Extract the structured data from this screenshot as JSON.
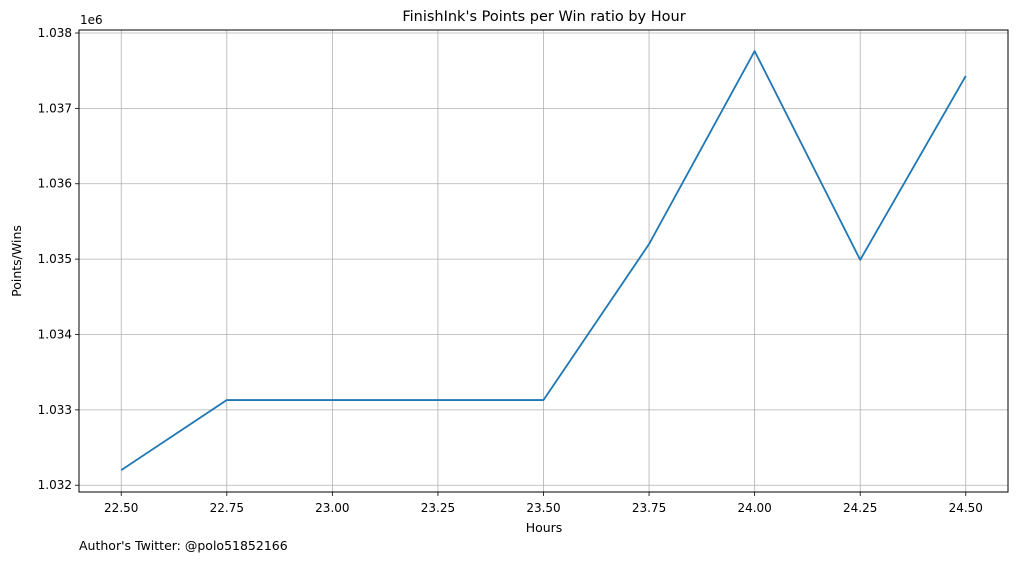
{
  "chart_data": {
    "type": "line",
    "title": "FinishInk's Points per Win ratio by Hour",
    "xlabel": "Hours",
    "ylabel": "Points/Wins",
    "y_offset_label": "1e6",
    "footer": "Author's Twitter: @polo51852166",
    "x": [
      22.5,
      22.75,
      23.0,
      23.25,
      23.5,
      23.75,
      24.0,
      24.25,
      24.5
    ],
    "series": [
      {
        "values": [
          1.0322,
          1.03313,
          1.03313,
          1.03313,
          1.03313,
          1.0352,
          1.03776,
          1.03499,
          1.03743
        ]
      }
    ],
    "xlim": [
      22.4,
      24.6
    ],
    "ylim": [
      1.03191,
      1.03804
    ],
    "xticks": [
      22.5,
      22.75,
      23.0,
      23.25,
      23.5,
      23.75,
      24.0,
      24.25,
      24.5
    ],
    "xtick_labels": [
      "22.50",
      "22.75",
      "23.00",
      "23.25",
      "23.50",
      "23.75",
      "24.00",
      "24.25",
      "24.50"
    ],
    "yticks": [
      1.032,
      1.033,
      1.034,
      1.035,
      1.036,
      1.037,
      1.038
    ],
    "ytick_labels": [
      "1.032",
      "1.033",
      "1.034",
      "1.035",
      "1.036",
      "1.037",
      "1.038"
    ],
    "grid": true,
    "line_color": "#1f77b4",
    "grid_color": "#b0b0b0"
  }
}
